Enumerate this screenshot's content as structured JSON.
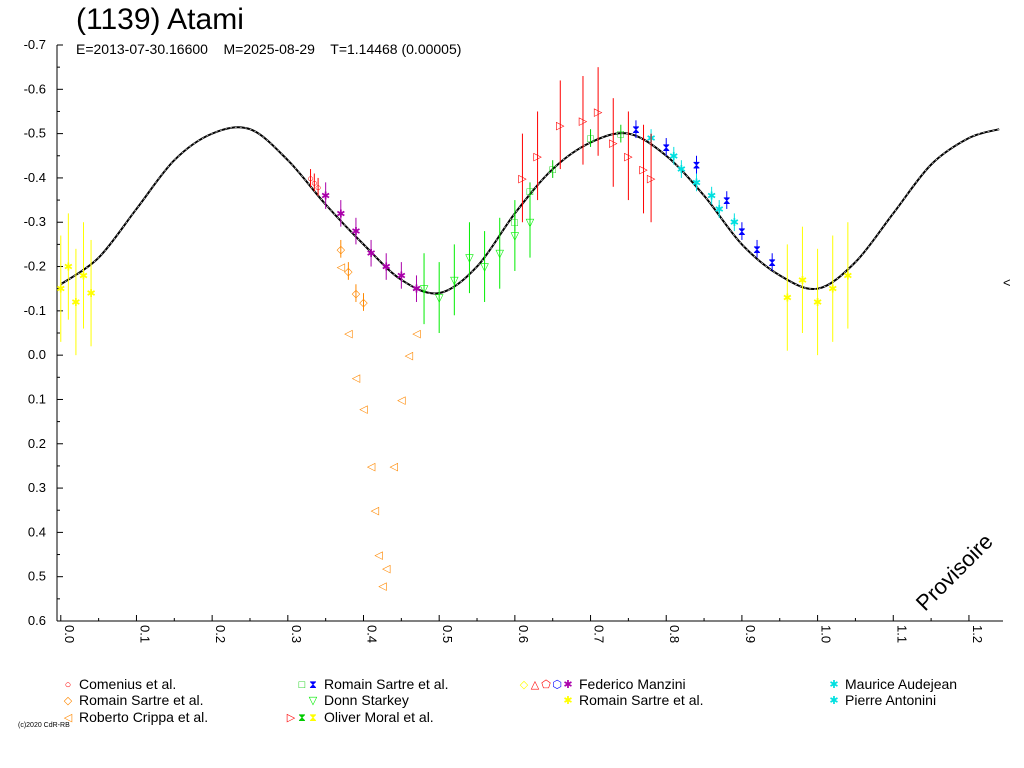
{
  "header": {
    "title": "(1139) Atami",
    "subtitle": "E=2013-07-30.16600    M=2025-08-29    T=1.14468 (0.00005)"
  },
  "footer": {
    "watermark": "Provisoire",
    "copyright": "(c)2020 CdR-RB"
  },
  "right_marker": "<",
  "chart_data": {
    "type": "scatter",
    "title": "(1139) Atami",
    "subtitle": "E=2013-07-30.16600    M=2025-08-29    T=1.14468 (0.00005)",
    "xlabel": "",
    "ylabel": "",
    "xlim": [
      -0.005,
      1.245
    ],
    "ylim": [
      -0.7,
      0.6
    ],
    "y_inverted": true,
    "x_ticks": [
      "0.0",
      "0.1",
      "0.2",
      "0.3",
      "0.4",
      "0.5",
      "0.6",
      "0.7",
      "0.8",
      "0.9",
      "1.0",
      "1.1",
      "1.2"
    ],
    "y_ticks": [
      "-0.7",
      "-0.6",
      "-0.5",
      "-0.4",
      "-0.3",
      "-0.2",
      "-0.1",
      "0.0",
      "0.1",
      "0.2",
      "0.3",
      "0.4",
      "0.5",
      "0.6"
    ],
    "grid": false,
    "model_curve": {
      "name": "",
      "color": "#000000",
      "x": [
        0.0,
        0.05,
        0.1,
        0.15,
        0.2,
        0.25,
        0.3,
        0.35,
        0.4,
        0.45,
        0.5,
        0.55,
        0.6,
        0.65,
        0.7,
        0.75,
        0.8,
        0.85,
        0.9,
        0.95,
        1.0,
        1.05,
        1.1,
        1.15,
        1.2,
        1.24
      ],
      "y": [
        -0.16,
        -0.22,
        -0.33,
        -0.44,
        -0.5,
        -0.51,
        -0.44,
        -0.34,
        -0.25,
        -0.17,
        -0.14,
        -0.2,
        -0.32,
        -0.42,
        -0.48,
        -0.5,
        -0.45,
        -0.36,
        -0.25,
        -0.18,
        -0.15,
        -0.21,
        -0.32,
        -0.43,
        -0.49,
        -0.51
      ]
    },
    "series": [
      {
        "name": "Comenius et al.",
        "color": "#ff0000",
        "marker": "circle",
        "x": [
          0.33,
          0.335,
          0.34
        ],
        "y": [
          -0.4,
          -0.39,
          -0.38
        ],
        "err": 0.02
      },
      {
        "name": "Romain Sartre et al.",
        "color": "#00cc00",
        "marker": "square",
        "x": [
          0.6,
          0.62,
          0.65,
          0.7,
          0.74
        ],
        "y": [
          -0.3,
          -0.37,
          -0.42,
          -0.49,
          -0.5
        ],
        "err": 0.02
      },
      {
        "name": "Romain Sartre et al.",
        "color": "#0000ff",
        "marker": "hourglass",
        "x": [
          0.76,
          0.8,
          0.84,
          0.88,
          0.9,
          0.92,
          0.94
        ],
        "y": [
          -0.51,
          -0.47,
          -0.43,
          -0.35,
          -0.28,
          -0.24,
          -0.21
        ],
        "err": 0.02
      },
      {
        "name": "Federico Manzini",
        "color": "#aa00aa",
        "marker": "star",
        "x": [
          0.35,
          0.37,
          0.39,
          0.41,
          0.43,
          0.45,
          0.47
        ],
        "y": [
          -0.36,
          -0.32,
          -0.28,
          -0.23,
          -0.2,
          -0.18,
          -0.15
        ],
        "err": 0.03
      },
      {
        "name": "Maurice Audejean",
        "color": "#00e0e0",
        "marker": "star",
        "x": [
          0.78,
          0.81,
          0.84,
          0.87
        ],
        "y": [
          -0.49,
          -0.45,
          -0.39,
          -0.33
        ],
        "err": 0.02
      },
      {
        "name": "Romain Sartre et al.",
        "color": "#ff8800",
        "marker": "diamond",
        "x": [
          0.37,
          0.38,
          0.39,
          0.4
        ],
        "y": [
          -0.24,
          -0.19,
          -0.14,
          -0.12
        ],
        "err": 0.02
      },
      {
        "name": "Donn Starkey",
        "color": "#00ee00",
        "marker": "triangle-down",
        "x": [
          0.48,
          0.5,
          0.52,
          0.54,
          0.56,
          0.58,
          0.6,
          0.62
        ],
        "y": [
          -0.15,
          -0.13,
          -0.17,
          -0.22,
          -0.2,
          -0.23,
          -0.27,
          -0.3
        ],
        "err": 0.08
      },
      {
        "name": "Romain Sartre et al.",
        "color": "#ffff00",
        "marker": "star",
        "x": [
          0.0,
          0.01,
          0.02,
          0.03,
          0.04,
          0.96,
          0.98,
          1.0,
          1.02,
          1.04
        ],
        "y": [
          -0.15,
          -0.2,
          -0.12,
          -0.18,
          -0.14,
          -0.13,
          -0.17,
          -0.12,
          -0.15,
          -0.18
        ],
        "err": 0.12
      },
      {
        "name": "Pierre Antonini",
        "color": "#00e0e0",
        "marker": "star",
        "x": [
          0.82,
          0.86,
          0.89
        ],
        "y": [
          -0.42,
          -0.36,
          -0.3
        ],
        "err": 0.02
      },
      {
        "name": "Roberto Crippa et al.",
        "color": "#ff8800",
        "marker": "triangle-left",
        "x": [
          0.37,
          0.38,
          0.39,
          0.4,
          0.41,
          0.415,
          0.42,
          0.425,
          0.43,
          0.44,
          0.45,
          0.46,
          0.47
        ],
        "y": [
          -0.2,
          -0.05,
          0.05,
          0.12,
          0.25,
          0.35,
          0.45,
          0.52,
          0.48,
          0.25,
          0.1,
          0.0,
          -0.05
        ],
        "err": 0.0
      },
      {
        "name": "Oliver Moral et al.",
        "color": "#ff0000",
        "marker": "triangle-right",
        "x": [
          0.61,
          0.63,
          0.66,
          0.69,
          0.71,
          0.73,
          0.75,
          0.77,
          0.78
        ],
        "y": [
          -0.4,
          -0.45,
          -0.52,
          -0.53,
          -0.55,
          -0.48,
          -0.45,
          -0.42,
          -0.4
        ],
        "err": 0.1
      }
    ]
  },
  "legend": {
    "placement": "bottom",
    "entries": [
      {
        "label": "Comenius et al.",
        "symbols": [
          {
            "icon": "circle",
            "color": "#ff0000"
          }
        ]
      },
      {
        "label": "Romain Sartre et al.",
        "symbols": [
          {
            "icon": "square",
            "color": "#00cc00"
          },
          {
            "icon": "hourglass",
            "color": "#0000ff"
          }
        ]
      },
      {
        "label": "Federico Manzini",
        "symbols": [
          {
            "icon": "diamond",
            "color": "#ffff00"
          },
          {
            "icon": "triangle",
            "color": "#ff0000"
          },
          {
            "icon": "pentagon",
            "color": "#ff0000"
          },
          {
            "icon": "hexagon",
            "color": "#0000ff"
          },
          {
            "icon": "star",
            "color": "#aa00aa"
          }
        ]
      },
      {
        "label": "Maurice Audejean",
        "symbols": [
          {
            "icon": "star",
            "color": "#00e0e0"
          }
        ]
      },
      {
        "label": "Romain Sartre et al.",
        "symbols": [
          {
            "icon": "diamond",
            "color": "#ff8800"
          }
        ]
      },
      {
        "label": "Donn Starkey",
        "symbols": [
          {
            "icon": "triangle-down",
            "color": "#00ee00"
          }
        ]
      },
      {
        "label": "Romain Sartre et al.",
        "symbols": [
          {
            "icon": "star",
            "color": "#ffff00"
          }
        ]
      },
      {
        "label": "Pierre Antonini",
        "symbols": [
          {
            "icon": "star",
            "color": "#00e0e0"
          }
        ]
      },
      {
        "label": "Roberto Crippa et al.",
        "symbols": [
          {
            "icon": "triangle-left",
            "color": "#ff8800"
          }
        ]
      },
      {
        "label": "Oliver Moral et al.",
        "symbols": [
          {
            "icon": "triangle-right",
            "color": "#ff0000"
          },
          {
            "icon": "hourglass",
            "color": "#00cc00"
          },
          {
            "icon": "hourglass",
            "color": "#ffff00"
          }
        ]
      }
    ]
  }
}
